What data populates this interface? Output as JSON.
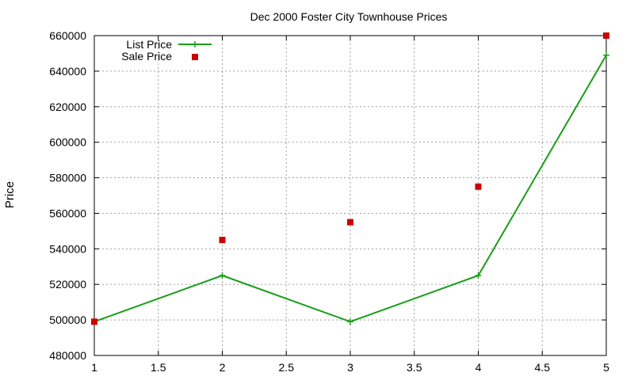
{
  "chart_data": {
    "type": "line",
    "title": "Dec 2000 Foster City Townhouse Prices",
    "xlabel": "",
    "ylabel": "Price",
    "xlim": [
      1,
      5
    ],
    "ylim": [
      480000,
      660000
    ],
    "xticks": [
      "1",
      "1.5",
      "2",
      "2.5",
      "3",
      "3.5",
      "4",
      "4.5",
      "5"
    ],
    "xtick_values": [
      1,
      1.5,
      2,
      2.5,
      3,
      3.5,
      4,
      4.5,
      5
    ],
    "yticks": [
      "480000",
      "500000",
      "520000",
      "540000",
      "560000",
      "580000",
      "600000",
      "620000",
      "640000",
      "660000"
    ],
    "ytick_values": [
      480000,
      500000,
      520000,
      540000,
      560000,
      580000,
      600000,
      620000,
      640000,
      660000
    ],
    "grid": true,
    "legend_position": "top-left",
    "x": [
      1,
      2,
      3,
      4,
      5
    ],
    "series": [
      {
        "name": "List Price",
        "style": "line+cross",
        "color": "#1a9e1a",
        "values": [
          499000,
          525000,
          499000,
          525000,
          649000
        ]
      },
      {
        "name": "Sale Price",
        "style": "points-square",
        "color": "#cc0000",
        "values": [
          499000,
          545000,
          555000,
          575000,
          660000
        ]
      }
    ]
  }
}
